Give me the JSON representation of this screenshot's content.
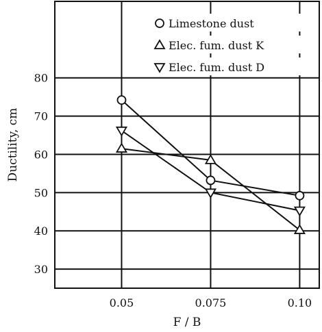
{
  "chart_data": {
    "type": "line",
    "title": "",
    "xlabel": "F / B",
    "ylabel": "Ductility, cm",
    "x": [
      0.05,
      0.075,
      0.1
    ],
    "x_tick_labels": [
      "0.05",
      "0.075",
      "0.10"
    ],
    "xlim": [
      0.03125,
      0.1055
    ],
    "ylim": [
      25,
      100
    ],
    "y_ticks": [
      30,
      40,
      50,
      60,
      70,
      80
    ],
    "y_tick_labels": [
      "30",
      "40",
      "50",
      "60",
      "70",
      "80"
    ],
    "grid": true,
    "legend_position": "top-right",
    "series": [
      {
        "name": "Limestone dust",
        "marker": "circle",
        "values": [
          74.2,
          53.2,
          49.2
        ]
      },
      {
        "name": "Elec. fum. dust K",
        "marker": "triangle-up",
        "values": [
          61.5,
          58.5,
          40.2
        ]
      },
      {
        "name": "Elec. fum. dust D",
        "marker": "triangle-down",
        "values": [
          66.2,
          50.0,
          45.3
        ]
      }
    ]
  }
}
